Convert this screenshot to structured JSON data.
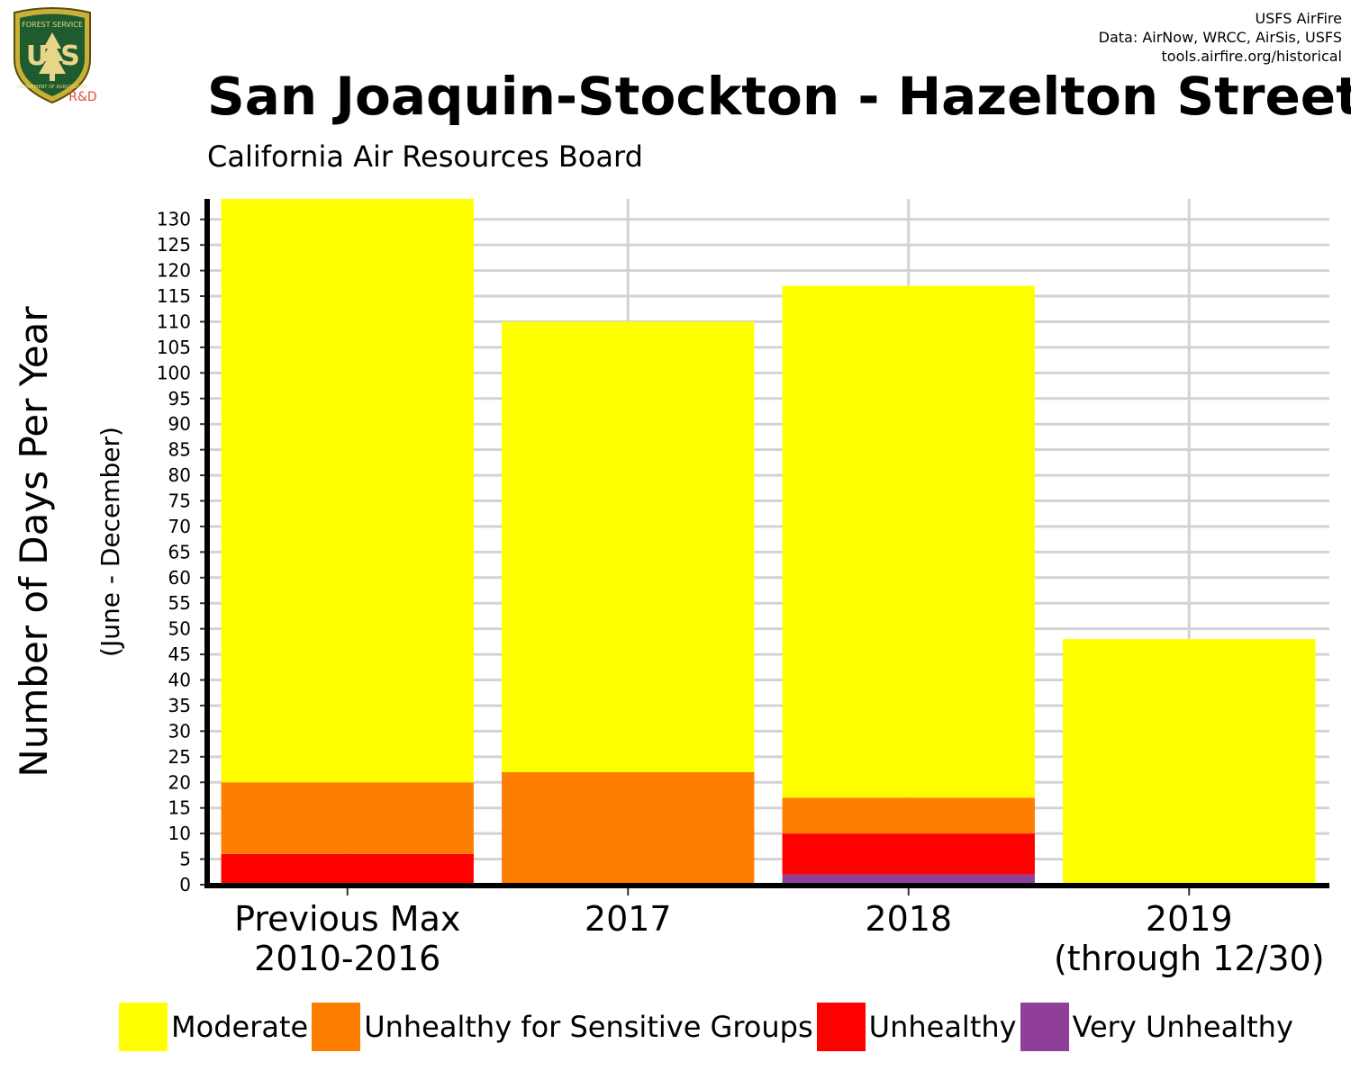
{
  "header": {
    "credit_lines": [
      "USFS AirFire",
      "Data: AirNow, WRCC, AirSis, USFS",
      "tools.airfire.org/historical"
    ],
    "logo": {
      "top_text": "FOREST SERVICE",
      "initials": "US",
      "bottom_text": "DEPARTMENT OF AGRICULTURE",
      "tag": "R&D"
    },
    "title": "San Joaquin-Stockton - Hazelton Street",
    "subtitle": "California Air Resources Board"
  },
  "colors": {
    "moderate": "#FFFF00",
    "usg": "#FF7E00",
    "unhealthy": "#FF0000",
    "very_unhealthy": "#8F3F97",
    "grid": "#D3D3D3",
    "axis": "#000000"
  },
  "chart_data": {
    "type": "bar",
    "stacked": true,
    "categories": [
      [
        "Previous Max",
        "2010-2016"
      ],
      [
        "2017"
      ],
      [
        "2018"
      ],
      [
        "2019",
        "(through 12/30)"
      ]
    ],
    "series": [
      {
        "name": "Very Unhealthy",
        "color": "#8F3F97",
        "values": [
          0,
          0,
          2,
          0
        ]
      },
      {
        "name": "Unhealthy",
        "color": "#FF0000",
        "values": [
          6,
          0,
          8,
          0
        ]
      },
      {
        "name": "Unhealthy for Sensitive Groups",
        "color": "#FF7E00",
        "values": [
          14,
          22,
          7,
          0
        ]
      },
      {
        "name": "Moderate",
        "color": "#FFFF00",
        "values": [
          114,
          88,
          100,
          48
        ]
      }
    ],
    "ylabel": "Number of Days Per Year",
    "ylabel_sub": "(June - December)",
    "ylim": [
      0,
      134
    ],
    "yticks": [
      0,
      5,
      10,
      15,
      20,
      25,
      30,
      35,
      40,
      45,
      50,
      55,
      60,
      65,
      70,
      75,
      80,
      85,
      90,
      95,
      100,
      105,
      110,
      115,
      120,
      125,
      130
    ],
    "grid": true,
    "legend_position": "bottom",
    "legend": [
      "Moderate",
      "Unhealthy for Sensitive Groups",
      "Unhealthy",
      "Very Unhealthy"
    ]
  }
}
